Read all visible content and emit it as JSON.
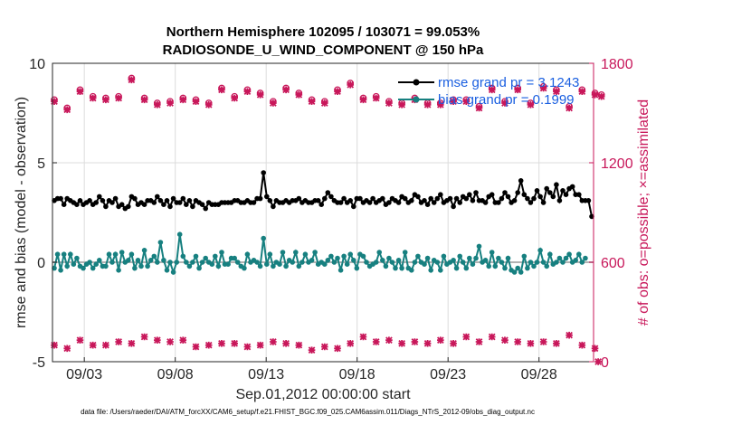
{
  "chart_data": {
    "type": "line",
    "title_line1": "Northern Hemisphere 102095 / 103071 = 99.053%",
    "title_line2": "RADIOSONDE_U_WIND_COMPONENT @ 150 hPa",
    "xlabel": "Sep.01,2012 00:00:00 start",
    "ylabel_left": "rmse and bias (model - observation)",
    "ylabel_right": "# of obs: o=possible; ×=assimilated",
    "footer": "data file: /Users/raeder/DAI/ATM_forcXX/CAM6_setup/f.e21.FHIST_BGC.f09_025.CAM6assim.011/Diags_NTrS_2012-09/obs_diag_output.nc",
    "x_ticks": [
      "09/03",
      "09/08",
      "09/13",
      "09/18",
      "09/23",
      "09/28"
    ],
    "x_tick_days": [
      3,
      8,
      13,
      18,
      23,
      28
    ],
    "xlim_days": [
      1.25,
      31.0
    ],
    "ylim_left": [
      -5,
      10
    ],
    "yticks_left": [
      "-5",
      "0",
      "5",
      "10"
    ],
    "ylim_right": [
      0,
      1800
    ],
    "yticks_right": [
      "0",
      "600",
      "1200",
      "1800"
    ],
    "colors": {
      "rmse": "#000000",
      "bias": "#178080",
      "obs": "#c8175a",
      "legend_text": "#1a5fe0",
      "grid": "#dcdcdc",
      "zero_line": "#b3b3b3"
    },
    "legend": [
      {
        "label": "rmse grand pr = 3.1243",
        "series": "rmse"
      },
      {
        "label": "bias grand pr = 0.1999",
        "series": "bias"
      }
    ],
    "series": [
      {
        "name": "rmse",
        "axis": "left",
        "values": [
          3.1,
          3.2,
          3.2,
          2.9,
          3.2,
          3.1,
          3.0,
          2.9,
          3.1,
          2.9,
          3.0,
          3.1,
          2.9,
          3.0,
          3.3,
          3.1,
          2.8,
          3.1,
          3.0,
          3.2,
          2.8,
          2.9,
          2.7,
          2.8,
          3.3,
          3.2,
          2.9,
          3.0,
          2.9,
          3.1,
          3.1,
          3.0,
          3.3,
          3.1,
          2.9,
          3.1,
          2.8,
          3.2,
          3.0,
          3.0,
          3.2,
          2.9,
          3.1,
          2.8,
          3.1,
          3.0,
          2.9,
          2.7,
          3.0,
          2.9,
          2.9,
          2.9,
          3.0,
          3.0,
          3.0,
          3.0,
          3.1,
          3.1,
          3.0,
          3.0,
          3.1,
          3.0,
          3.0,
          3.2,
          3.2,
          4.5,
          3.3,
          3.1,
          2.8,
          3.1,
          3.0,
          3.0,
          3.1,
          3.0,
          3.1,
          3.1,
          3.2,
          3.0,
          3.1,
          3.0,
          3.0,
          3.1,
          3.1,
          2.9,
          3.2,
          3.5,
          3.3,
          3.1,
          3.0,
          3.0,
          3.2,
          3.0,
          3.1,
          2.8,
          3.2,
          3.2,
          3.0,
          3.1,
          3.0,
          3.2,
          3.0,
          3.1,
          3.2,
          2.9,
          3.0,
          3.2,
          3.1,
          3.0,
          3.3,
          3.2,
          3.0,
          3.1,
          3.4,
          3.3,
          3.0,
          3.1,
          2.9,
          3.2,
          3.0,
          3.2,
          3.4,
          3.0,
          3.1,
          3.2,
          2.8,
          3.2,
          3.0,
          3.3,
          3.2,
          3.4,
          3.1,
          3.5,
          3.1,
          3.1,
          3.0,
          3.3,
          3.4,
          3.0,
          3.0,
          3.2,
          3.5,
          3.3,
          3.0,
          3.1,
          3.5,
          4.1,
          3.4,
          3.2,
          3.0,
          3.2,
          3.6,
          3.3,
          3.0,
          3.7,
          3.5,
          3.3,
          3.9,
          3.1,
          3.6,
          3.4,
          3.7,
          3.8,
          3.4,
          3.4,
          3.1,
          3.1,
          3.1,
          2.3
        ]
      },
      {
        "name": "bias",
        "axis": "left",
        "values": [
          -0.3,
          0.4,
          -0.4,
          0.4,
          -0.2,
          0.4,
          -0.1,
          0.2,
          -0.2,
          -0.3,
          -0.1,
          0.0,
          -0.3,
          -0.1,
          0.1,
          -0.2,
          -0.2,
          0.4,
          0.0,
          0.4,
          -0.4,
          0.5,
          0.0,
          0.1,
          0.4,
          -0.3,
          0.1,
          -0.2,
          0.6,
          -0.2,
          0.1,
          0.3,
          0.0,
          1.0,
          0.1,
          -0.4,
          0.0,
          -0.5,
          0.0,
          1.4,
          0.3,
          0.0,
          -0.2,
          0.0,
          0.3,
          -0.3,
          0.0,
          0.2,
          0.0,
          -0.1,
          0.3,
          -0.2,
          0.5,
          -0.1,
          -0.1,
          0.2,
          0.2,
          0.0,
          -0.2,
          -0.3,
          0.4,
          0.0,
          0.1,
          0.0,
          -0.2,
          1.2,
          -0.1,
          0.4,
          -0.2,
          0.0,
          -0.1,
          0.5,
          -0.2,
          0.1,
          0.0,
          0.5,
          -0.2,
          0.0,
          0.4,
          0.0,
          0.1,
          0.5,
          -0.1,
          0.0,
          -0.1,
          0.1,
          0.3,
          0.0,
          0.2,
          -0.4,
          0.3,
          -0.1,
          0.4,
          0.1,
          -0.3,
          0.4,
          0.3,
          0.0,
          -0.2,
          -0.1,
          0.0,
          0.5,
          0.1,
          -0.2,
          0.2,
          0.0,
          -0.3,
          0.1,
          -0.3,
          0.5,
          -0.3,
          -0.4,
          0.0,
          0.3,
          0.0,
          -0.1,
          0.2,
          -0.4,
          0.1,
          0.0,
          -0.4,
          0.3,
          -0.1,
          0.0,
          0.1,
          -0.3,
          0.3,
          0.0,
          -0.3,
          0.2,
          -0.1,
          0.2,
          0.8,
          0.0,
          0.1,
          -0.2,
          0.5,
          -0.2,
          0.2,
          0.0,
          -0.3,
          0.2,
          -0.4,
          -0.5,
          -0.3,
          -0.5,
          0.3,
          -0.3,
          0.0,
          -0.2,
          0.0,
          0.6,
          0.0,
          -0.2,
          0.4,
          -0.1,
          0.0,
          0.2,
          0.0,
          0.2,
          0.4,
          0.0,
          0.1,
          0.4,
          0.0,
          0.2
        ]
      },
      {
        "name": "obs_possible",
        "axis": "right",
        "values": [
          1580,
          1560,
          1610,
          1550,
          1530,
          1630,
          1620,
          1590,
          1640,
          1610,
          1540,
          1560,
          1600,
          1620,
          1690,
          1640,
          1590,
          1620,
          1610,
          1670,
          1600,
          1590,
          1660,
          1650,
          1710,
          1650,
          1620,
          1610,
          1590,
          1680,
          1630,
          1620,
          1560,
          1610,
          1650,
          1660,
          1570,
          1610,
          1680,
          1640,
          1590,
          1680,
          1630,
          1600,
          1580,
          1520,
          1590,
          1610,
          1560,
          1620,
          1600,
          1590,
          1650,
          1620,
          1640,
          1560,
          1600,
          1610,
          1660,
          1620,
          1640,
          1650,
          1610,
          1640,
          1620,
          1590,
          1620,
          1640,
          1570,
          1560,
          1610,
          1600,
          1650,
          1630,
          1590,
          1580,
          1620,
          1590,
          1540,
          1610,
          1580,
          1590,
          1560,
          1600,
          1570,
          1600,
          1620,
          1590,
          1640,
          1590,
          1670,
          1660,
          1680,
          1620,
          1600,
          1630,
          1590,
          1650,
          1730,
          1560,
          1600,
          1640,
          1580,
          1620,
          1570,
          1620,
          1630,
          1590,
          1560,
          1630,
          1600,
          1550,
          1590,
          1570,
          1600,
          1620,
          1560,
          1610,
          1540,
          1500,
          1560,
          1590,
          1530,
          1620,
          1580,
          1640,
          1610,
          1560,
          1580,
          1650,
          1620,
          1590,
          1540,
          1640,
          1560,
          1610,
          1650,
          1620,
          1590,
          1630,
          1570,
          1620,
          1560,
          1600,
          1650,
          1590,
          1620,
          1530,
          1560,
          1620,
          1590,
          1600,
          1660,
          1610,
          1590,
          1550,
          1640,
          1600,
          1620,
          1570,
          1540,
          1620,
          1580,
          1610,
          1640,
          1590,
          1610,
          1600,
          1620,
          1630,
          1610
        ]
      },
      {
        "name": "obs_assimilated",
        "axis": "right",
        "values": [
          1570,
          1550,
          1600,
          1540,
          1520,
          1620,
          1610,
          1580,
          1630,
          1600,
          1530,
          1550,
          1590,
          1610,
          1680,
          1630,
          1580,
          1610,
          1600,
          1660,
          1590,
          1580,
          1650,
          1640,
          1700,
          1640,
          1610,
          1600,
          1580,
          1670,
          1620,
          1610,
          1550,
          1600,
          1640,
          1650,
          1560,
          1600,
          1670,
          1630,
          1580,
          1670,
          1620,
          1590,
          1570,
          1510,
          1580,
          1600,
          1550,
          1610,
          1590,
          1580,
          1640,
          1610,
          1630,
          1550,
          1590,
          1600,
          1650,
          1610,
          1630,
          1640,
          1600,
          1630,
          1610,
          1580,
          1610,
          1630,
          1560,
          1550,
          1600,
          1590,
          1640,
          1620,
          1580,
          1570,
          1610,
          1580,
          1530,
          1600,
          1570,
          1580,
          1550,
          1590,
          1560,
          1590,
          1610,
          1580,
          1630,
          1580,
          1660,
          1650,
          1670,
          1610,
          1590,
          1620,
          1580,
          1640,
          1720,
          1550,
          1590,
          1630,
          1570,
          1610,
          1560,
          1610,
          1620,
          1580,
          1550,
          1620,
          1590,
          1540,
          1580,
          1560,
          1590,
          1610,
          1550,
          1600,
          1530,
          1490,
          1550,
          1580,
          1520,
          1610,
          1570,
          1630,
          1600,
          1550,
          1570,
          1640,
          1610,
          1580,
          1530,
          1630,
          1550,
          1600,
          1640,
          1610,
          1580,
          1620,
          1560,
          1610,
          1550,
          1590,
          1640,
          1580,
          1610,
          1520,
          1550,
          1610,
          1580,
          1590,
          1650,
          1600,
          1580,
          1540,
          1630,
          1590,
          1610,
          1560,
          1530,
          1610,
          1570,
          1600,
          1630,
          1580,
          1600,
          1590,
          1610,
          1620,
          1600
        ]
      },
      {
        "name": "obs_low",
        "axis": "right",
        "values": [
          100,
          110,
          100,
          110,
          80,
          120,
          100,
          100,
          130,
          120,
          110,
          100,
          100,
          120,
          120,
          130,
          100,
          110,
          130,
          110,
          120,
          130,
          100,
          120,
          110,
          130,
          140,
          120,
          150,
          130,
          120,
          140,
          130,
          110,
          140,
          150,
          120,
          140,
          130,
          110,
          130,
          100,
          120,
          100,
          90,
          110,
          80,
          100,
          100,
          110,
          80,
          100,
          110,
          90,
          120,
          100,
          110,
          90,
          110,
          100,
          90,
          120,
          110,
          90,
          100,
          120,
          110,
          100,
          120,
          90,
          120,
          80,
          110,
          90,
          100,
          110,
          100,
          120,
          110,
          90,
          70,
          90,
          80,
          110,
          90,
          100,
          70,
          100,
          80,
          120,
          100,
          130,
          110,
          120,
          130,
          100,
          150,
          110,
          140,
          130,
          120,
          140,
          100,
          120,
          130,
          110,
          110,
          140,
          110,
          120,
          120,
          90,
          120,
          110,
          130,
          100,
          110,
          120,
          100,
          110,
          130,
          100,
          130,
          130,
          110,
          140,
          140,
          120,
          150,
          130,
          140,
          140,
          120,
          150,
          110,
          130,
          150,
          120,
          140,
          110,
          130,
          140,
          110,
          130,
          120,
          130,
          100,
          130,
          110,
          120,
          110,
          140,
          120,
          100,
          120,
          90,
          110,
          100,
          130,
          100,
          160,
          120,
          110,
          90,
          100,
          80,
          110,
          90,
          80,
          0
        ]
      }
    ]
  }
}
